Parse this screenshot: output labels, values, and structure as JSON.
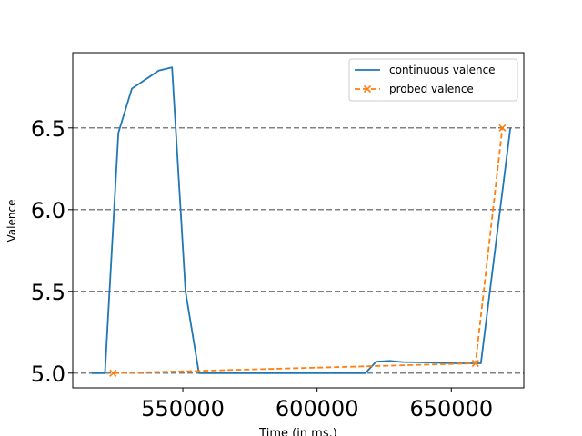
{
  "chart_data": {
    "type": "line",
    "title": "",
    "xlabel": "Time (in ms.)",
    "ylabel": "Valence",
    "xlim": [
      509000,
      677000
    ],
    "ylim": [
      4.91,
      6.96
    ],
    "xticks": [
      550000,
      600000,
      650000
    ],
    "xtick_labels": [
      "550000",
      "600000",
      "650000"
    ],
    "yticks": [
      5.0,
      5.5,
      6.0,
      6.5
    ],
    "ytick_labels": [
      "5.0",
      "5.5",
      "6.0",
      "6.5"
    ],
    "grid": {
      "axis": "y",
      "style": "dashed",
      "color": "#808080"
    },
    "legend": {
      "position": "top-right"
    },
    "series": [
      {
        "name": "continuous valence",
        "color": "#1f77b4",
        "style": "solid",
        "marker": "none",
        "x": [
          516000,
          521000,
          526000,
          531000,
          541000,
          546000,
          551000,
          556000,
          618000,
          622000,
          627000,
          632000,
          642000,
          652000,
          661000,
          672000
        ],
        "y": [
          5.0,
          5.0,
          6.47,
          6.74,
          6.85,
          6.87,
          5.5,
          5.0,
          5.0,
          5.07,
          5.075,
          5.068,
          5.065,
          5.06,
          5.06,
          6.5
        ]
      },
      {
        "name": "probed valence",
        "color": "#ff7f0e",
        "style": "dashed",
        "marker": "x",
        "x": [
          524000,
          659000,
          669000
        ],
        "y": [
          5.0,
          5.06,
          6.5
        ]
      }
    ]
  }
}
